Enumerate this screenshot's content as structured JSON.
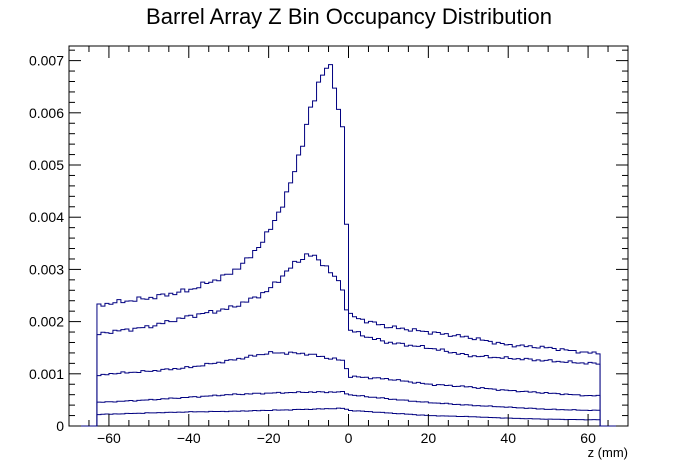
{
  "chart_data": {
    "type": "line",
    "style": "step-histogram",
    "title": "Barrel Array Z Bin Occupancy Distribution",
    "xlabel": "z (mm)",
    "ylabel": "",
    "xlim": [
      -70,
      70
    ],
    "ylim": [
      0,
      0.00728
    ],
    "x_ticks": [
      -60,
      -40,
      -20,
      0,
      20,
      40,
      60
    ],
    "x_tick_labels": [
      "−60",
      "−40",
      "−20",
      "0",
      "20",
      "40",
      "60"
    ],
    "y_ticks": [
      0,
      0.001,
      0.002,
      0.003,
      0.004,
      0.005,
      0.006,
      0.007
    ],
    "y_tick_labels": [
      "0",
      "0.001",
      "0.002",
      "0.003",
      "0.004",
      "0.005",
      "0.006",
      "0.007"
    ],
    "grid": false,
    "legend": "none",
    "bin_range": [
      -63,
      63
    ],
    "bin_width": 1,
    "line_color": "#000080",
    "series": [
      {
        "x": [
          -63,
          -60,
          -50,
          -40,
          -30,
          -25,
          -20,
          -15,
          -12,
          -10,
          -8,
          -7,
          -6,
          -5,
          -4,
          -3,
          -2,
          -1,
          0,
          1,
          5,
          10,
          20,
          30,
          40,
          50,
          60,
          63
        ],
        "values": [
          0.0023,
          0.00235,
          0.00245,
          0.0026,
          0.0029,
          0.0032,
          0.0037,
          0.0045,
          0.0053,
          0.0059,
          0.0064,
          0.0067,
          0.0069,
          0.0069,
          0.0067,
          0.0063,
          0.0058,
          0.0057,
          0.00215,
          0.0021,
          0.002,
          0.0019,
          0.0018,
          0.0017,
          0.00155,
          0.0015,
          0.0014,
          0.0014
        ]
      },
      {
        "x": [
          -63,
          -60,
          -50,
          -40,
          -30,
          -25,
          -20,
          -15,
          -12,
          -10,
          -8,
          -6,
          -4,
          -2,
          -1,
          0,
          5,
          10,
          20,
          30,
          40,
          50,
          60,
          63
        ],
        "values": [
          0.00175,
          0.0018,
          0.0019,
          0.0021,
          0.00225,
          0.0024,
          0.0026,
          0.003,
          0.0032,
          0.0033,
          0.0032,
          0.0031,
          0.0029,
          0.0027,
          0.0026,
          0.00185,
          0.0017,
          0.0016,
          0.0015,
          0.00135,
          0.0013,
          0.00125,
          0.0012,
          0.0012
        ]
      },
      {
        "x": [
          -63,
          -60,
          -50,
          -40,
          -30,
          -20,
          -15,
          -10,
          -5,
          -1,
          0,
          10,
          20,
          30,
          40,
          50,
          60,
          63
        ],
        "values": [
          0.00095,
          0.001,
          0.00105,
          0.00112,
          0.00125,
          0.0014,
          0.0014,
          0.00138,
          0.0013,
          0.00125,
          0.00095,
          0.0009,
          0.0008,
          0.00075,
          0.00068,
          0.00063,
          0.00058,
          0.00058
        ]
      },
      {
        "x": [
          -63,
          -50,
          -40,
          -30,
          -20,
          -10,
          -1,
          0,
          10,
          20,
          30,
          40,
          50,
          60,
          63
        ],
        "values": [
          0.00045,
          0.0005,
          0.00055,
          0.0006,
          0.00063,
          0.00065,
          0.00065,
          0.0006,
          0.00052,
          0.00045,
          0.0004,
          0.00036,
          0.00032,
          0.0003,
          0.0003
        ]
      },
      {
        "x": [
          -63,
          -50,
          -40,
          -30,
          -20,
          -10,
          -1,
          0,
          10,
          20,
          30,
          40,
          50,
          60,
          63
        ],
        "values": [
          0.00022,
          0.00025,
          0.00027,
          0.00028,
          0.0003,
          0.00032,
          0.00034,
          0.0003,
          0.00025,
          0.0002,
          0.00018,
          0.00015,
          0.00013,
          0.00012,
          0.00012
        ]
      }
    ]
  }
}
